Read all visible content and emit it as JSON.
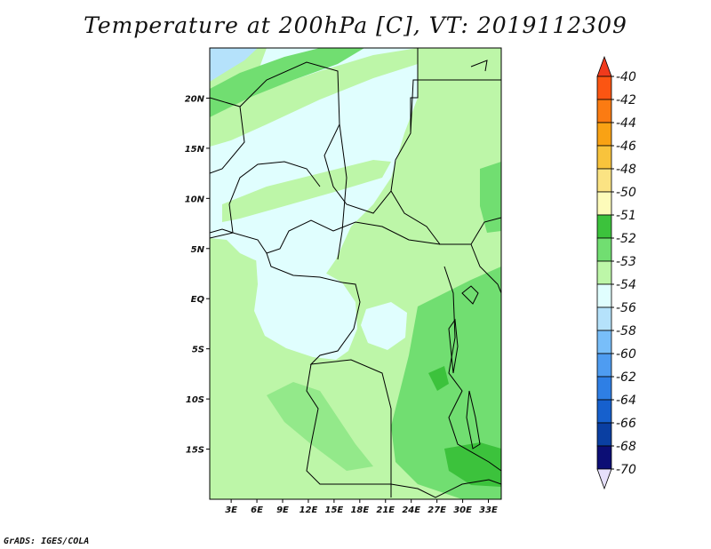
{
  "chart_data": {
    "type": "heatmap",
    "title": "Temperature at 200hPa [C], VT: 2019112309",
    "xlabel": "",
    "ylabel": "",
    "x_ticks": [
      "3E",
      "6E",
      "9E",
      "12E",
      "15E",
      "18E",
      "21E",
      "24E",
      "27E",
      "30E",
      "33E"
    ],
    "y_ticks": [
      "20N",
      "15N",
      "10N",
      "5N",
      "EQ",
      "5S",
      "10S",
      "15S"
    ],
    "xlim": [
      0.5,
      34.5
    ],
    "ylim": [
      -20,
      25
    ],
    "colorbar": {
      "labels": [
        "-40",
        "-42",
        "-44",
        "-46",
        "-48",
        "-50",
        "-51",
        "-52",
        "-53",
        "-54",
        "-56",
        "-58",
        "-60",
        "-62",
        "-64",
        "-66",
        "-68",
        "-70"
      ],
      "colors": [
        "#f03a1c",
        "#fb5512",
        "#fb7b12",
        "#f9a214",
        "#f8c33c",
        "#fbe383",
        "#fdfbba",
        "#3cc23c",
        "#71de71",
        "#bdf6a8",
        "#e0fefe",
        "#b5e2fb",
        "#78bef9",
        "#4e9cf1",
        "#2e7fe5",
        "#1660cd",
        "#0a3fa2",
        "#0c0e75",
        "#e6e0fb"
      ]
    },
    "regions": [
      {
        "name": "northwest",
        "level": "-54 to -56",
        "color": "#e0fefe"
      },
      {
        "name": "far-north-west-corner",
        "level": "-56 to -58",
        "color": "#b5e2fb"
      },
      {
        "name": "central",
        "level": "-53 to -54",
        "color": "#bdf6a8"
      },
      {
        "name": "east",
        "level": "-52 to -53",
        "color": "#71de71"
      },
      {
        "name": "southeast",
        "level": "-51 to -52",
        "color": "#3cc23c"
      }
    ]
  },
  "credit": "GrADS: IGES/COLA"
}
